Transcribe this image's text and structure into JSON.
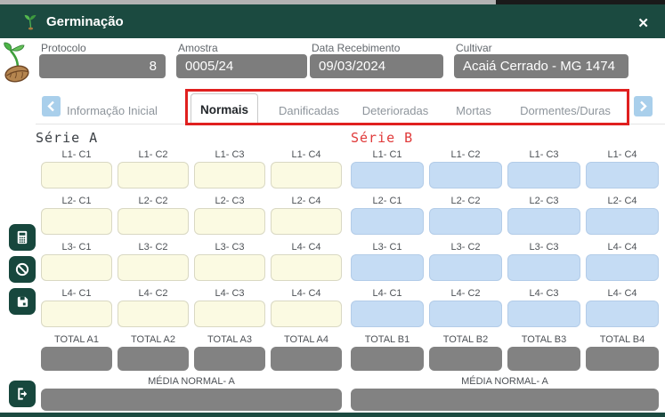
{
  "window": {
    "title": "Germinação",
    "close_glyph": "✕"
  },
  "header": {
    "fields": [
      {
        "label": "Protocolo",
        "value": "8"
      },
      {
        "label": "Amostra",
        "value": "0005/24"
      },
      {
        "label": "Data Recebimento",
        "value": "09/03/2024"
      },
      {
        "label": "Cultivar",
        "value": "Acaiá Cerrado - MG 1474"
      }
    ]
  },
  "tabs": {
    "items": [
      {
        "label": "Informação Inicial",
        "active": false
      },
      {
        "label": "Normais",
        "active": true
      },
      {
        "label": "Danificadas",
        "active": false
      },
      {
        "label": "Deterioradas",
        "active": false
      },
      {
        "label": "Mortas",
        "active": false
      },
      {
        "label": "Dormentes/Duras",
        "active": false
      }
    ]
  },
  "series_a": {
    "title": "Série A",
    "rows": [
      [
        "L1- C1",
        "L1- C2",
        "L1- C3",
        "L1- C4"
      ],
      [
        "L2- C1",
        "L2- C2",
        "L2- C3",
        "L2- C4"
      ],
      [
        "L3- C1",
        "L3- C2",
        "L3- C3",
        "L4- C4"
      ],
      [
        "L4- C1",
        "L4- C2",
        "L4- C3",
        "L4- C4"
      ]
    ],
    "cell_values": [
      [
        "",
        "",
        "",
        ""
      ],
      [
        "",
        "",
        "",
        ""
      ],
      [
        "",
        "",
        "",
        ""
      ],
      [
        "",
        "",
        "",
        ""
      ]
    ],
    "totals": [
      "TOTAL A1",
      "TOTAL A2",
      "TOTAL A3",
      "TOTAL A4"
    ],
    "total_values": [
      "",
      "",
      "",
      ""
    ],
    "media_label": "MÉDIA NORMAL- A",
    "media_value": ""
  },
  "series_b": {
    "title": "Série B",
    "rows": [
      [
        "L1- C1",
        "L1- C2",
        "L1- C3",
        "L1- C4"
      ],
      [
        "L2- C1",
        "L2- C2",
        "L2- C3",
        "L2- C4"
      ],
      [
        "L3- C1",
        "L3- C2",
        "L3- C3",
        "L4- C4"
      ],
      [
        "L4- C1",
        "L4- C2",
        "L4- C3",
        "L4- C4"
      ]
    ],
    "cell_values": [
      [
        "",
        "",
        "",
        ""
      ],
      [
        "",
        "",
        "",
        ""
      ],
      [
        "",
        "",
        "",
        ""
      ],
      [
        "",
        "",
        "",
        ""
      ]
    ],
    "totals": [
      "TOTAL B1",
      "TOTAL B2",
      "TOTAL B3",
      "TOTAL B4"
    ],
    "total_values": [
      "",
      "",
      "",
      ""
    ],
    "media_label": "MÉDIA NORMAL- A",
    "media_value": ""
  },
  "sidebar": {
    "buttons": [
      {
        "name": "calculator"
      },
      {
        "name": "cancel"
      },
      {
        "name": "save"
      },
      {
        "name": "exit"
      }
    ]
  },
  "colors": {
    "titlebar_teal": "#1b4a40",
    "sidebar_teal": "#17473d",
    "field_gray": "#7d7d7d",
    "total_gray": "#828282",
    "cell_yellow": "#fbfae2",
    "cell_blue": "#c5dcf4",
    "accent_red": "#e0201f",
    "serie_b_red": "#e03a3a",
    "arrow_blue": "#a9cfeb"
  }
}
